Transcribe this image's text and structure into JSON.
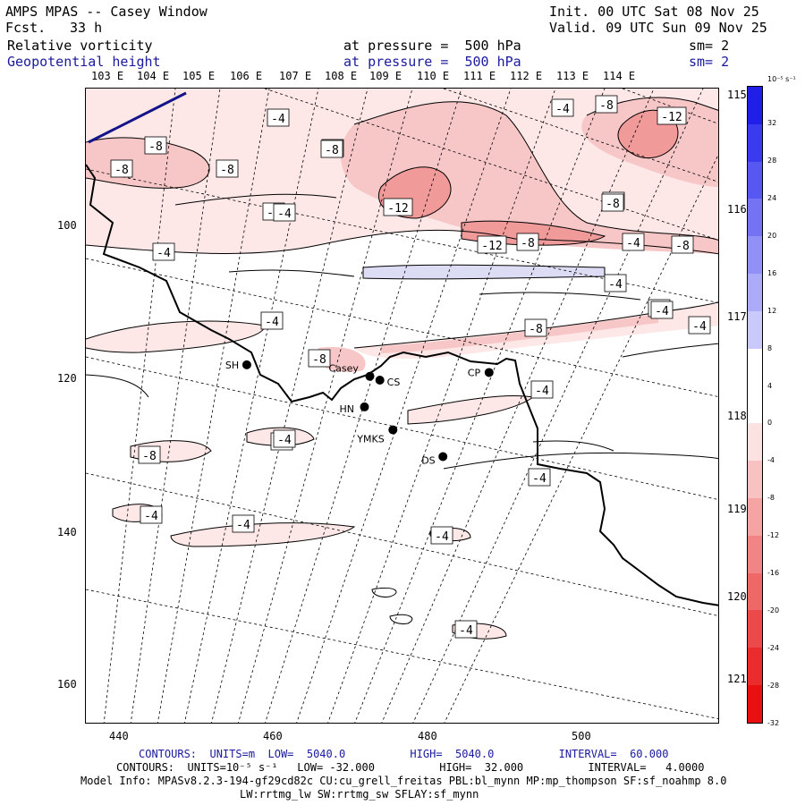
{
  "header": {
    "title": "AMPS MPAS -- Casey Window",
    "fcst_label": "Fcst.",
    "fcst_value": "33 h",
    "init": "Init. 00 UTC Sat 08 Nov 25",
    "valid": "Valid. 09 UTC Sun 09 Nov 25",
    "field1": "Relative vorticity",
    "field1_pressure": "at pressure =  500 hPa",
    "field1_sm": "sm= 2",
    "field2": "Geopotential height",
    "field2_pressure": "at pressure =  500 hPa",
    "field2_sm": "sm= 2"
  },
  "colors": {
    "positive_pink": "#f7c6c6",
    "light_pink": "#fde7e7",
    "deep_pink": "#f09a9a",
    "light_blue": "#dcdcf4",
    "contour_blue": "#14148a",
    "station": "#000000"
  },
  "map": {
    "lon_labels": [
      "103 E",
      "104 E",
      "105 E",
      "106 E",
      "107 E",
      "108 E",
      "109 E",
      "110 E",
      "111 E",
      "112 E",
      "113 E",
      "114 E"
    ],
    "right_lat_labels": [
      "115 E",
      "116 E",
      "117 E",
      "118 E",
      "119 E",
      "120 E",
      "121 E"
    ],
    "x_ticks": [
      "440",
      "460",
      "480",
      "500"
    ],
    "y_ticks": [
      "100",
      "120",
      "140",
      "160"
    ],
    "stations": [
      {
        "name": "SH",
        "x": 456.5,
        "y": 118.0
      },
      {
        "name": "Casey",
        "x": 472.5,
        "y": 119.5
      },
      {
        "name": "CS",
        "x": 473.8,
        "y": 120.0
      },
      {
        "name": "HN",
        "x": 471.8,
        "y": 123.5
      },
      {
        "name": "YMKS",
        "x": 475.5,
        "y": 126.5
      },
      {
        "name": "CP",
        "x": 488.0,
        "y": 119.0
      },
      {
        "name": "DS",
        "x": 482.0,
        "y": 130.0
      }
    ],
    "contour_labels": [
      "-4",
      "-8",
      "-4",
      "-8",
      "-4",
      "-8",
      "-12",
      "-8",
      "-4",
      "-8",
      "-4",
      "-12",
      "-8",
      "-12",
      "-8",
      "-4",
      "-8",
      "-4",
      "-4",
      "-8",
      "-4",
      "-8",
      "-4",
      "-4",
      "-8",
      "-4",
      "-4",
      "-4",
      "-4",
      "-4",
      "-4",
      "-4",
      "-4",
      "-8",
      "-4"
    ]
  },
  "colorbar": {
    "units": "10⁻⁵ s⁻¹",
    "levels": [
      "32",
      "28",
      "24",
      "20",
      "16",
      "12",
      "8",
      "4",
      "0",
      "-4",
      "-8",
      "-12",
      "-16",
      "-20",
      "-24",
      "-28",
      "-32"
    ],
    "colors": [
      "#1f1fe8",
      "#3a3aee",
      "#5757f2",
      "#7373f4",
      "#9090f7",
      "#ababf9",
      "#c9c9fb",
      "#ffffff",
      "#ffffff",
      "#fde2e2",
      "#f8c2c2",
      "#f5a3a3",
      "#f18585",
      "#ee6868",
      "#ec4a4a",
      "#ea2c2c",
      "#e81010"
    ]
  },
  "footer": {
    "contours1": "CONTOURS:  UNITS=m  LOW=  5040.0          HIGH=  5040.0          INTERVAL=  60.000",
    "contours2": "CONTOURS:  UNITS=10⁻⁵ s⁻¹   LOW= -32.000          HIGH=  32.000          INTERVAL=   4.0000",
    "model_info": "Model Info: MPASv8.2.3-194-gf29cd82c CU:cu_grell_freitas PBL:bl_mynn MP:mp_thompson SF:sf_noahmp 8.0",
    "model_info2": "LW:rrtmg_lw SW:rrtmg_sw SFLAY:sf_mynn"
  }
}
